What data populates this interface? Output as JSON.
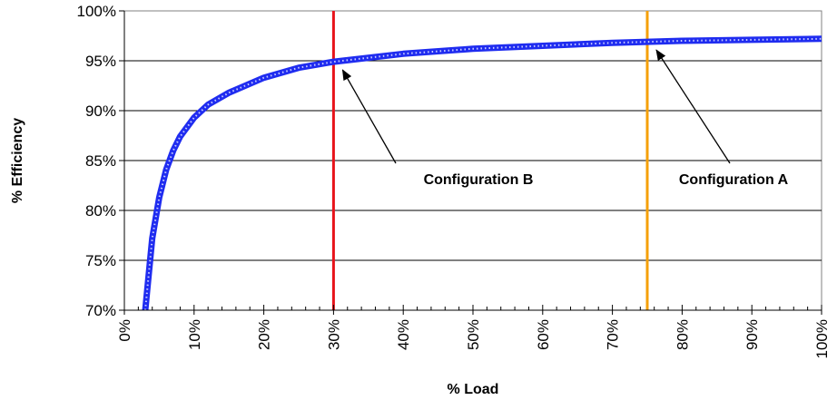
{
  "chart_data": {
    "type": "line",
    "title": "",
    "xlabel": "% Load",
    "ylabel": "% Efficiency",
    "xlim": [
      0,
      100
    ],
    "ylim": [
      70,
      100
    ],
    "x_ticks": [
      "0%",
      "10%",
      "20%",
      "30%",
      "40%",
      "50%",
      "60%",
      "70%",
      "80%",
      "90%",
      "100%"
    ],
    "y_ticks": [
      "70%",
      "75%",
      "80%",
      "85%",
      "90%",
      "95%",
      "100%"
    ],
    "grid": "horizontal",
    "series": [
      {
        "color": "#1f2cf0",
        "x": [
          3,
          4,
          5,
          6,
          7,
          8,
          10,
          12,
          15,
          20,
          25,
          30,
          40,
          50,
          60,
          70,
          75,
          80,
          90,
          100
        ],
        "y": [
          70.0,
          77.2,
          81.3,
          84.1,
          86.0,
          87.4,
          89.3,
          90.6,
          91.8,
          93.3,
          94.3,
          94.9,
          95.7,
          96.2,
          96.5,
          96.8,
          96.9,
          97.0,
          97.1,
          97.2
        ]
      }
    ],
    "reference_lines": [
      {
        "x": 30,
        "color": "#e8141b"
      },
      {
        "x": 75,
        "color": "#f5a00a"
      }
    ],
    "annotations": [
      {
        "text": "Configuration B",
        "target": {
          "x": 30,
          "y": 94.9
        }
      },
      {
        "text": "Configuration A",
        "target": {
          "x": 75,
          "y": 96.9
        }
      }
    ]
  }
}
